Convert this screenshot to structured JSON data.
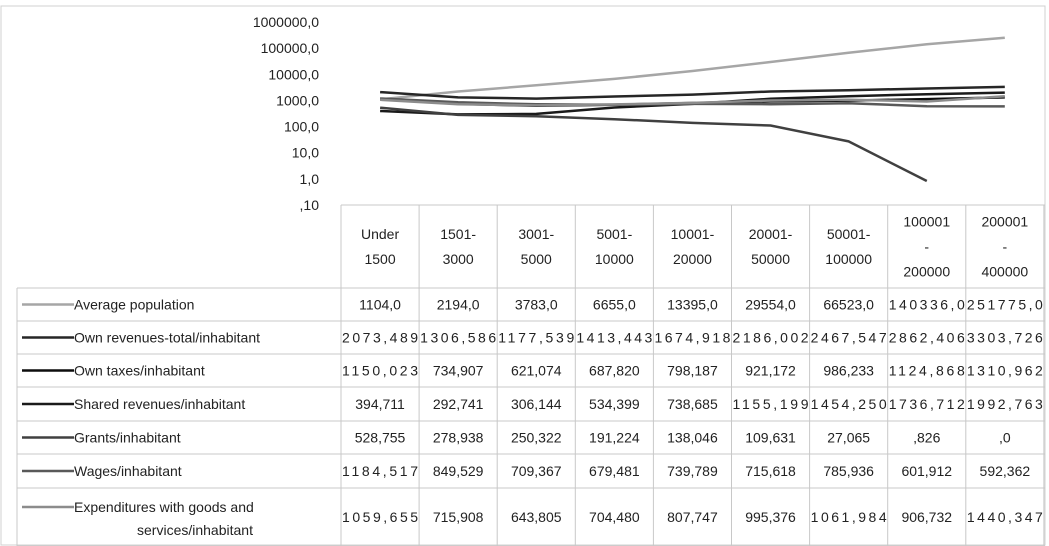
{
  "chart_data": {
    "type": "line",
    "y_scale": "log",
    "y_tick_labels": [
      "1000000,0",
      "100000,0",
      "10000,0",
      "1000,0",
      "100,0",
      "10,0",
      "1,0",
      ",10"
    ],
    "y_ticks": [
      1000000,
      100000,
      10000,
      1000,
      100,
      10,
      1,
      0.1
    ],
    "ylim": [
      0.1,
      1000000
    ],
    "grid": false,
    "legend_position": "data-table-left",
    "categories": [
      [
        "Under",
        "1500"
      ],
      [
        "1501-",
        "3000"
      ],
      [
        "3001-",
        "5000"
      ],
      [
        "5001-",
        "10000"
      ],
      [
        "10001-",
        "20000"
      ],
      [
        "20001-",
        "50000"
      ],
      [
        "50001-",
        "100000"
      ],
      [
        "100001",
        "-",
        "200000"
      ],
      [
        "200001",
        "-",
        "400000"
      ]
    ],
    "series": [
      {
        "name": "Average population",
        "color": "#a6a6a6",
        "values": [
          1104.0,
          2194.0,
          3783.0,
          6655.0,
          13395.0,
          29554.0,
          66523.0,
          140336.0,
          251775.0
        ],
        "labels": [
          "1104,0",
          "2194,0",
          "3783,0",
          "6655,0",
          "13395,0",
          "29554,0",
          "66523,0",
          "140336,0",
          "251775,0"
        ]
      },
      {
        "name": "Own revenues-total/inhabitant",
        "color": "#262626",
        "values": [
          2073.489,
          1306.586,
          1177.539,
          1413.443,
          1674.918,
          2186.002,
          2467.547,
          2862.406,
          3303.726
        ],
        "labels": [
          "2073,489",
          "1306,586",
          "1177,539",
          "1413,443",
          "1674,918",
          "2186,002",
          "2467,547",
          "2862,406",
          "3303,726"
        ]
      },
      {
        "name": "Own taxes/inhabitant",
        "color": "#0d0d0d",
        "values": [
          1150.023,
          734.907,
          621.074,
          687.82,
          798.187,
          921.172,
          986.233,
          1124.868,
          1310.962
        ],
        "labels": [
          "1150,023",
          "734,907",
          "621,074",
          "687,820",
          "798,187",
          "921,172",
          "986,233",
          "1124,868",
          "1310,962"
        ]
      },
      {
        "name": "Shared revenues/inhabitant",
        "color": "#1a1a1a",
        "values": [
          394.711,
          292.741,
          306.144,
          534.399,
          738.685,
          1155.199,
          1454.25,
          1736.712,
          1992.763
        ],
        "labels": [
          "394,711",
          "292,741",
          "306,144",
          "534,399",
          "738,685",
          "1155,199",
          "1454,250",
          "1736,712",
          "1992,763"
        ]
      },
      {
        "name": "Grants/inhabitant",
        "color": "#404040",
        "values": [
          528.755,
          278.938,
          250.322,
          191.224,
          138.046,
          109.631,
          27.065,
          0.826,
          0.0
        ],
        "labels": [
          "528,755",
          "278,938",
          "250,322",
          "191,224",
          "138,046",
          "109,631",
          "27,065",
          ",826",
          ",0"
        ]
      },
      {
        "name": "Wages/inhabitant",
        "color": "#595959",
        "values": [
          1184.517,
          849.529,
          709.367,
          679.481,
          739.789,
          715.618,
          785.936,
          601.912,
          592.362
        ],
        "labels": [
          "1184,517",
          "849,529",
          "709,367",
          "679,481",
          "739,789",
          "715,618",
          "785,936",
          "601,912",
          "592,362"
        ]
      },
      {
        "name": "Expenditures with goods and services/inhabitant",
        "name_lines": [
          "Expenditures with goods and",
          "services/inhabitant"
        ],
        "color": "#8c8c8c",
        "values": [
          1059.655,
          715.908,
          643.805,
          704.48,
          807.747,
          995.376,
          1061.984,
          906.732,
          1440.347
        ],
        "labels": [
          "1059,655",
          "715,908",
          "643,805",
          "704,480",
          "807,747",
          "995,376",
          "1061,984",
          "906,732",
          "1440,347"
        ]
      }
    ]
  }
}
